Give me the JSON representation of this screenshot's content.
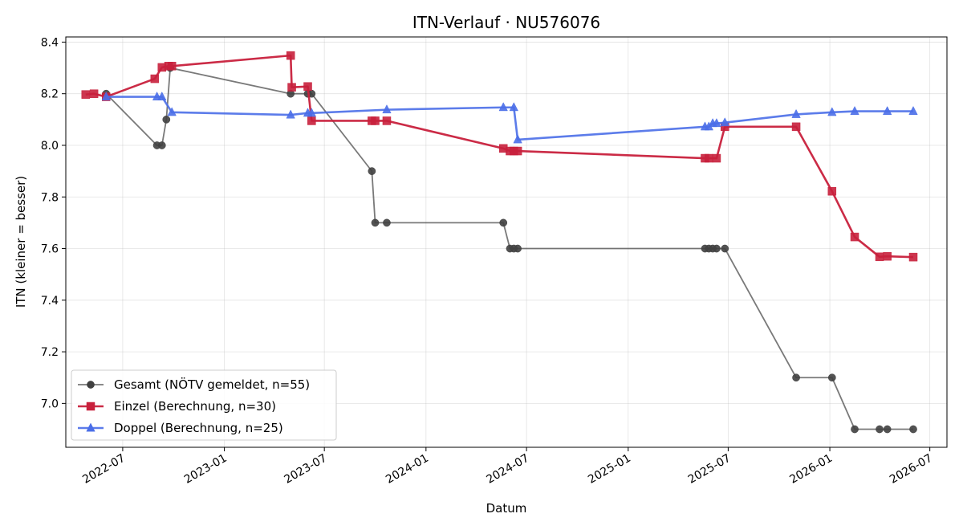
{
  "chart_data": {
    "type": "line",
    "title": "ITN-Verlauf · NU576076",
    "xlabel": "Datum",
    "ylabel": "ITN  (kleiner = besser)",
    "x_type": "date",
    "xlim": [
      "2022-03-20",
      "2026-08-01"
    ],
    "ylim": [
      6.83,
      8.42
    ],
    "yticks": [
      7.0,
      7.2,
      7.4,
      7.6,
      7.8,
      8.0,
      8.2,
      8.4
    ],
    "xticks": [
      "2022-07-01",
      "2023-01-01",
      "2023-07-01",
      "2024-01-01",
      "2024-07-01",
      "2025-01-01",
      "2025-07-01",
      "2026-01-01",
      "2026-07-01"
    ],
    "xtick_labels": [
      "2022-07",
      "2023-01",
      "2023-07",
      "2024-01",
      "2024-07",
      "2025-01",
      "2025-07",
      "2026-01",
      "2026-07"
    ],
    "grid": true,
    "legend_position": "lower-left",
    "series": [
      {
        "name": "Gesamt (NÖTV gemeldet, n=55)",
        "color": "#404040",
        "marker": "circle",
        "points": [
          {
            "x": "2022-06-01",
            "y": 8.2
          },
          {
            "x": "2022-09-01",
            "y": 8.0
          },
          {
            "x": "2022-09-10",
            "y": 8.0
          },
          {
            "x": "2022-09-18",
            "y": 8.1
          },
          {
            "x": "2022-09-25",
            "y": 8.3
          },
          {
            "x": "2023-05-01",
            "y": 8.2
          },
          {
            "x": "2023-06-01",
            "y": 8.2
          },
          {
            "x": "2023-06-08",
            "y": 8.2
          },
          {
            "x": "2023-09-25",
            "y": 7.9
          },
          {
            "x": "2023-10-01",
            "y": 7.7
          },
          {
            "x": "2023-10-22",
            "y": 7.7
          },
          {
            "x": "2024-05-20",
            "y": 7.7
          },
          {
            "x": "2024-06-01",
            "y": 7.6
          },
          {
            "x": "2024-06-08",
            "y": 7.6
          },
          {
            "x": "2024-06-15",
            "y": 7.6
          },
          {
            "x": "2025-05-20",
            "y": 7.6
          },
          {
            "x": "2025-05-27",
            "y": 7.6
          },
          {
            "x": "2025-06-03",
            "y": 7.6
          },
          {
            "x": "2025-06-10",
            "y": 7.6
          },
          {
            "x": "2025-06-25",
            "y": 7.6
          },
          {
            "x": "2025-11-01",
            "y": 7.1
          },
          {
            "x": "2026-01-05",
            "y": 7.1
          },
          {
            "x": "2026-02-15",
            "y": 6.9
          },
          {
            "x": "2026-04-01",
            "y": 6.9
          },
          {
            "x": "2026-04-15",
            "y": 6.9
          },
          {
            "x": "2026-06-01",
            "y": 6.9
          }
        ]
      },
      {
        "name": "Einzel (Berechnung, n=30)",
        "color": "#c8203c",
        "marker": "square",
        "points": [
          {
            "x": "2022-04-25",
            "y": 8.197
          },
          {
            "x": "2022-05-10",
            "y": 8.2
          },
          {
            "x": "2022-06-01",
            "y": 8.188
          },
          {
            "x": "2022-08-28",
            "y": 8.258
          },
          {
            "x": "2022-09-10",
            "y": 8.302
          },
          {
            "x": "2022-09-22",
            "y": 8.307
          },
          {
            "x": "2022-09-28",
            "y": 8.307
          },
          {
            "x": "2023-05-01",
            "y": 8.348
          },
          {
            "x": "2023-05-03",
            "y": 8.225
          },
          {
            "x": "2023-06-01",
            "y": 8.228
          },
          {
            "x": "2023-06-08",
            "y": 8.095
          },
          {
            "x": "2023-09-25",
            "y": 8.095
          },
          {
            "x": "2023-10-01",
            "y": 8.095
          },
          {
            "x": "2023-10-22",
            "y": 8.095
          },
          {
            "x": "2024-05-20",
            "y": 7.988
          },
          {
            "x": "2024-06-01",
            "y": 7.978
          },
          {
            "x": "2024-06-08",
            "y": 7.978
          },
          {
            "x": "2024-06-15",
            "y": 7.978
          },
          {
            "x": "2025-05-20",
            "y": 7.95
          },
          {
            "x": "2025-05-27",
            "y": 7.95
          },
          {
            "x": "2025-06-10",
            "y": 7.95
          },
          {
            "x": "2025-06-25",
            "y": 8.072
          },
          {
            "x": "2025-11-01",
            "y": 8.072
          },
          {
            "x": "2026-01-05",
            "y": 7.822
          },
          {
            "x": "2026-02-15",
            "y": 7.645
          },
          {
            "x": "2026-04-01",
            "y": 7.568
          },
          {
            "x": "2026-04-15",
            "y": 7.57
          },
          {
            "x": "2026-06-01",
            "y": 7.567
          }
        ]
      },
      {
        "name": "Doppel (Berechnung, n=25)",
        "color": "#4a6ee8",
        "marker": "triangle",
        "points": [
          {
            "x": "2022-06-01",
            "y": 8.188
          },
          {
            "x": "2022-09-01",
            "y": 8.188
          },
          {
            "x": "2022-09-10",
            "y": 8.188
          },
          {
            "x": "2022-09-28",
            "y": 8.128
          },
          {
            "x": "2023-05-01",
            "y": 8.118
          },
          {
            "x": "2023-06-01",
            "y": 8.125
          },
          {
            "x": "2023-06-08",
            "y": 8.125
          },
          {
            "x": "2023-10-22",
            "y": 8.138
          },
          {
            "x": "2024-05-20",
            "y": 8.147
          },
          {
            "x": "2024-06-08",
            "y": 8.147
          },
          {
            "x": "2024-06-15",
            "y": 8.022
          },
          {
            "x": "2025-05-20",
            "y": 8.072
          },
          {
            "x": "2025-05-27",
            "y": 8.072
          },
          {
            "x": "2025-06-03",
            "y": 8.085
          },
          {
            "x": "2025-06-10",
            "y": 8.085
          },
          {
            "x": "2025-06-25",
            "y": 8.088
          },
          {
            "x": "2025-11-01",
            "y": 8.12
          },
          {
            "x": "2026-01-05",
            "y": 8.128
          },
          {
            "x": "2026-02-15",
            "y": 8.132
          },
          {
            "x": "2026-04-15",
            "y": 8.132
          },
          {
            "x": "2026-06-01",
            "y": 8.132
          }
        ]
      }
    ]
  }
}
